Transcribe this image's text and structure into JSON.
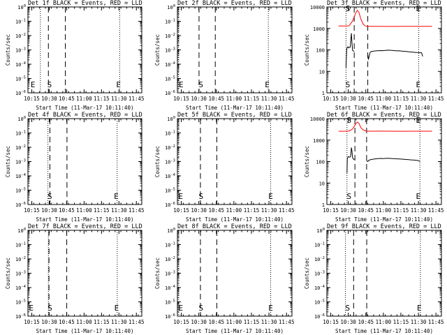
{
  "chart_data": [
    {
      "type": "line",
      "title": "Det 1f BLACK = Events, RED = LLD",
      "xlabel": "Start Time (11-Mar-17 10:11:40)",
      "ylabel": "Counts/sec",
      "xticks": [
        "10:15",
        "10:30",
        "10:45",
        "11:00",
        "11:15",
        "11:30",
        "11:45"
      ],
      "yscale": "log",
      "yticks": [
        "10^-6",
        "10^-5",
        "10^-4",
        "10^-3",
        "10^-2",
        "10^-1",
        "10^0"
      ],
      "vlines": {
        "dotted_minutes": [
          10.7,
          79.0
        ],
        "dashed_minutes": [
          17.6,
          32.2
        ]
      },
      "markers": [
        {
          "label": "E",
          "minute": 4.3
        },
        {
          "label": "S",
          "minute": 18.6
        },
        {
          "label": "E",
          "minute": 78.0
        }
      ],
      "series": []
    },
    {
      "type": "line",
      "title": "Det 2f BLACK = Events, RED = LLD",
      "xlabel": "Start Time (11-Mar-17 10:11:40)",
      "ylabel": "Counts/sec",
      "xticks": [
        "10:15",
        "10:30",
        "10:45",
        "11:00",
        "11:15",
        "11:30",
        "11:45"
      ],
      "yscale": "log",
      "yticks": [
        "10^-6",
        "10^-5",
        "10^-4",
        "10^-3",
        "10^-2",
        "10^-1",
        "10^0"
      ],
      "vlines": {
        "dotted_minutes": [
          1.0,
          77.8
        ],
        "dashed_minutes": [
          18.5,
          32.4
        ]
      },
      "markers": [
        {
          "label": "E",
          "minute": 3.2
        },
        {
          "label": "S",
          "minute": 20.1
        },
        {
          "label": "E",
          "minute": 76.8
        }
      ],
      "series": []
    },
    {
      "type": "line",
      "title": "Det 3f BLACK = Events, RED = LLD",
      "xlabel": "Start Time (11-Mar-17 10:11:40)",
      "ylabel": "Counts/sec",
      "xticks": [
        "10:15",
        "10:30",
        "10:45",
        "11:00",
        "11:15",
        "11:30",
        "11:45"
      ],
      "yscale": "log",
      "yticks": [
        "1",
        "10",
        "100",
        "1000",
        "10000"
      ],
      "vlines": {
        "dotted_minutes": [
          16.4,
          78.6
        ],
        "dashed_minutes": [
          23.4,
          35.0
        ]
      },
      "markers": [
        {
          "label": "S",
          "minute": 18.0
        },
        {
          "label": "E",
          "minute": 78.2
        }
      ],
      "series": [
        {
          "color": "#ff0000",
          "x": [
            10,
            16,
            19,
            22,
            24.5,
            26,
            27.5,
            29,
            31,
            33,
            35,
            38,
            45,
            55,
            65,
            75,
            82,
            90
          ],
          "y": [
            1300,
            1300,
            1320,
            2200,
            5000,
            7000,
            5500,
            2800,
            1600,
            1300,
            1250,
            1250,
            1260,
            1240,
            1250,
            1260,
            1250,
            1260
          ]
        },
        {
          "color": "#000000",
          "x": [
            16.4,
            17,
            17.5,
            18,
            18.5,
            19,
            20,
            20.5,
            21,
            21.5,
            22,
            23.4
          ],
          "y": [
            15,
            110,
            130,
            140,
            125,
            130,
            135,
            300,
            600,
            200,
            95,
            85
          ],
          "segment": 1
        },
        {
          "color": "#000000",
          "x": [
            35,
            35.5,
            37,
            38,
            40,
            42,
            44,
            46,
            48,
            50,
            52,
            54,
            56,
            58,
            60,
            62,
            64,
            66,
            68,
            70,
            72,
            74,
            76,
            78,
            79,
            80,
            81,
            82
          ],
          "y": [
            60,
            35,
            75,
            85,
            88,
            90,
            92,
            93,
            92,
            95,
            97,
            96,
            94,
            92,
            90,
            91,
            88,
            86,
            84,
            82,
            80,
            78,
            76,
            75,
            74,
            74,
            73,
            50
          ],
          "segment": 2
        }
      ]
    },
    {
      "type": "line",
      "title": "Det 4f BLACK = Events, RED = LLD",
      "xlabel": "Start Time (11-Mar-17 10:11:40)",
      "ylabel": "Counts/sec",
      "xticks": [
        "10:15",
        "10:30",
        "10:45",
        "11:00",
        "11:15",
        "11:30",
        "11:45"
      ],
      "yscale": "log",
      "yticks": [
        "10^-6",
        "10^-5",
        "10^-4",
        "10^-3",
        "10^-2",
        "10^-1",
        "10^0"
      ],
      "vlines": {
        "dotted_minutes": [
          17.2,
          76.8
        ],
        "dashed_minutes": [
          18.9,
          33.6
        ]
      },
      "markers": [
        {
          "label": "S",
          "minute": 18.8
        },
        {
          "label": "E",
          "minute": 76.0
        }
      ],
      "series": []
    },
    {
      "type": "line",
      "title": "Det 5f BLACK = Events, RED = LLD",
      "xlabel": "Start Time (11-Mar-17 10:11:40)",
      "ylabel": "Counts/sec",
      "xticks": [
        "10:15",
        "10:30",
        "10:45",
        "11:00",
        "11:15",
        "11:30",
        "11:45"
      ],
      "yscale": "log",
      "yticks": [
        "10^-6",
        "10^-5",
        "10^-4",
        "10^-3",
        "10^-2",
        "10^-1",
        "10^0"
      ],
      "vlines": {
        "dotted_minutes": [
          1.1,
          79.8
        ],
        "dashed_minutes": [
          19.7,
          33.7
        ]
      },
      "markers": [
        {
          "label": "E",
          "minute": 2.8
        },
        {
          "label": "S",
          "minute": 20.2
        },
        {
          "label": "E",
          "minute": 79.8
        }
      ],
      "series": []
    },
    {
      "type": "line",
      "title": "Det 6f BLACK = Events, RED = LLD",
      "xlabel": "Start Time (11-Mar-17 10:11:40)",
      "ylabel": "Counts/sec",
      "xticks": [
        "10:15",
        "10:30",
        "10:45",
        "11:00",
        "11:15",
        "11:30",
        "11:45"
      ],
      "yscale": "log",
      "yticks": [
        "1",
        "10",
        "100",
        "1000",
        "10000"
      ],
      "vlines": {
        "dotted_minutes": [
          17.2,
          79.6
        ],
        "dashed_minutes": [
          24.0,
          34.0
        ]
      },
      "markers": [
        {
          "label": "S",
          "minute": 19.0
        },
        {
          "label": "E",
          "minute": 78.2
        }
      ],
      "series": [
        {
          "color": "#ff0000",
          "x": [
            10,
            16,
            19,
            22,
            24.5,
            26,
            27.5,
            29,
            31,
            33,
            35,
            38,
            45,
            55,
            65,
            75,
            82,
            90
          ],
          "y": [
            2600,
            2600,
            2650,
            3300,
            5500,
            7000,
            6000,
            3900,
            3000,
            2700,
            2600,
            2600,
            2620,
            2600,
            2580,
            2600,
            2600,
            2600
          ],
          "partial_start": true
        },
        {
          "color": "#000000",
          "x": [
            17.2,
            17.5,
            18,
            18.5,
            19,
            20,
            20.5,
            21,
            21.5,
            22,
            23.5
          ],
          "y": [
            30,
            140,
            160,
            170,
            160,
            165,
            200,
            450,
            300,
            150,
            120
          ],
          "segment": 1
        },
        {
          "color": "#000000",
          "x": [
            34,
            35,
            36,
            38,
            40,
            42,
            44,
            46,
            48,
            50,
            52,
            54,
            56,
            58,
            60,
            62,
            64,
            66,
            68,
            70,
            72,
            74,
            76,
            78,
            79.6
          ],
          "y": [
            110,
            100,
            115,
            125,
            130,
            135,
            138,
            140,
            138,
            140,
            142,
            140,
            138,
            136,
            134,
            132,
            130,
            128,
            125,
            122,
            120,
            118,
            115,
            112,
            100
          ],
          "segment": 2
        }
      ]
    },
    {
      "type": "line",
      "title": "Det 7f BLACK = Events, RED = LLD",
      "xlabel": "Start Time (11-Mar-17 10:11:40)",
      "ylabel": "Counts/sec",
      "xticks": [
        "10:15",
        "10:30",
        "10:45",
        "11:00",
        "11:15",
        "11:30",
        "11:45"
      ],
      "yscale": "log",
      "yticks": [
        "10^-6",
        "10^-5",
        "10^-4",
        "10^-3",
        "10^-2",
        "10^-1",
        "10^0"
      ],
      "vlines": {
        "dotted_minutes": [
          17.6,
          76.9
        ],
        "dashed_minutes": [
          18.1,
          33.4
        ]
      },
      "markers": [
        {
          "label": "E",
          "minute": 2.8
        },
        {
          "label": "S",
          "minute": 19.0
        },
        {
          "label": "E",
          "minute": 76.3
        }
      ],
      "series": []
    },
    {
      "type": "line",
      "title": "Det 8f BLACK = Events, RED = LLD",
      "xlabel": "Start Time (11-Mar-17 10:11:40)",
      "ylabel": "Counts/sec",
      "xticks": [
        "10:15",
        "10:30",
        "10:45",
        "11:00",
        "11:15",
        "11:30",
        "11:45"
      ],
      "yscale": "log",
      "yticks": [
        "10^-6",
        "10^-5",
        "10^-4",
        "10^-3",
        "10^-2",
        "10^-1",
        "10^0"
      ],
      "vlines": {
        "dotted_minutes": [
          1.1,
          79.8
        ],
        "dashed_minutes": [
          19.7,
          33.7
        ]
      },
      "markers": [
        {
          "label": "E",
          "minute": 2.8
        },
        {
          "label": "S",
          "minute": 20.2
        },
        {
          "label": "E",
          "minute": 79.8
        }
      ],
      "series": []
    },
    {
      "type": "line",
      "title": "Det 9f BLACK = Events, RED = LLD",
      "xlabel": "Start Time (11-Mar-17 10:11:40)",
      "ylabel": "Counts/sec",
      "xticks": [
        "10:15",
        "10:30",
        "10:45",
        "11:00",
        "11:15",
        "11:30",
        "11:45"
      ],
      "yscale": "log",
      "yticks": [
        "10^-6",
        "10^-5",
        "10^-4",
        "10^-3",
        "10^-2",
        "10^-1",
        "10^0"
      ],
      "vlines": {
        "dotted_minutes": [
          15.9,
          80.0
        ],
        "dashed_minutes": [
          22.9,
          34.1
        ]
      },
      "markers": [
        {
          "label": "S",
          "minute": 17.8
        },
        {
          "label": "E",
          "minute": 79.1
        }
      ],
      "series": []
    }
  ]
}
